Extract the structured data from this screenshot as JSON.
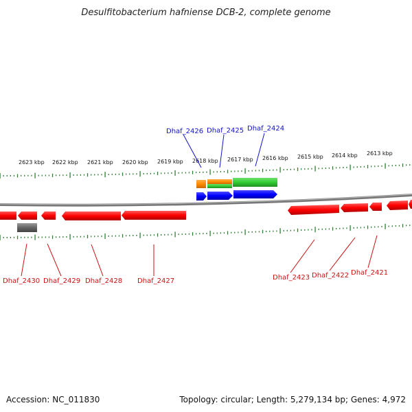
{
  "title": "Desulfitobacterium hafniense DCB-2, complete genome",
  "ruler": {
    "ticks": [
      "2623 kbp",
      "2622 kbp",
      "2621 kbp",
      "2620 kbp",
      "2619 kbp",
      "2618 kbp",
      "2617 kbp",
      "2616 kbp",
      "2615 kbp",
      "2614 kbp",
      "2613 kbp"
    ]
  },
  "genes_top": [
    "Dhaf_2426",
    "Dhaf_2425",
    "Dhaf_2424"
  ],
  "genes_bottom": [
    "Dhaf_2430",
    "Dhaf_2429",
    "Dhaf_2428",
    "Dhaf_2427",
    "Dhaf_2423",
    "Dhaf_2422",
    "Dhaf_2421"
  ],
  "colors": {
    "forward": "#ff0000",
    "reverse": "#0000ff",
    "orange": "#ff8c00",
    "green": "#33cc33",
    "gray": "#666666",
    "tick": "#2e7d32",
    "backbone": "#888888",
    "label_blue": "#1010cc",
    "label_red": "#cc1010"
  },
  "footer": {
    "accession": "Accession: NC_011830",
    "summary": "Topology: circular; Length: 5,279,134 bp; Genes: 4,972"
  }
}
